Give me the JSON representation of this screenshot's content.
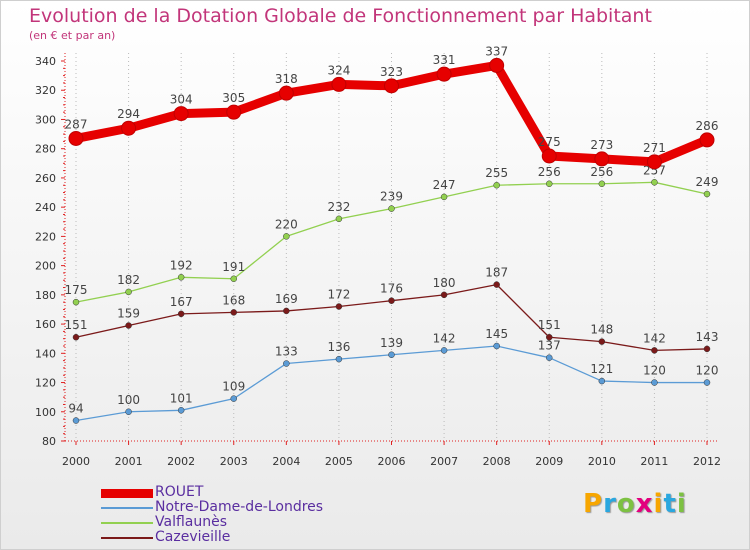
{
  "header": {
    "title": "Evolution de la Dotation Globale de Fonctionnement par Habitant",
    "subtitle": "(en € et par an)"
  },
  "chart_data": {
    "type": "line",
    "title": "Evolution de la Dotation Globale de Fonctionnement par Habitant",
    "subtitle": "(en € et par an)",
    "xlabel": "",
    "ylabel": "",
    "categories": [
      "2000",
      "2001",
      "2002",
      "2003",
      "2004",
      "2005",
      "2006",
      "2007",
      "2008",
      "2009",
      "2010",
      "2011",
      "2012"
    ],
    "ylim": [
      80,
      340
    ],
    "yticks": [
      80,
      100,
      120,
      140,
      160,
      180,
      200,
      220,
      240,
      260,
      280,
      300,
      320,
      340
    ],
    "grid": "vertical-dotted",
    "legend_position": "bottom-left",
    "series": [
      {
        "name": "ROUET",
        "color": "#e60000",
        "values": [
          287,
          294,
          304,
          305,
          318,
          324,
          323,
          331,
          337,
          275,
          273,
          271,
          286
        ]
      },
      {
        "name": "Notre-Dame-de-Londres",
        "color": "#5b9bd5",
        "values": [
          94,
          100,
          101,
          109,
          133,
          136,
          139,
          142,
          145,
          137,
          121,
          120,
          120
        ]
      },
      {
        "name": "Valflaunès",
        "color": "#92d050",
        "values": [
          175,
          182,
          192,
          191,
          220,
          232,
          239,
          247,
          255,
          256,
          256,
          257,
          249
        ]
      },
      {
        "name": "Cazevieille",
        "color": "#7b1a1a",
        "values": [
          151,
          159,
          167,
          168,
          169,
          172,
          176,
          180,
          187,
          151,
          148,
          142,
          143
        ]
      }
    ]
  },
  "logo": {
    "letters": [
      "P",
      "r",
      "o",
      "x",
      "i",
      "t",
      "i"
    ],
    "colors": [
      "#f7a600",
      "#2aa7df",
      "#7dc142",
      "#e3007e",
      "#f7a600",
      "#2aa7df",
      "#7dc142"
    ]
  }
}
